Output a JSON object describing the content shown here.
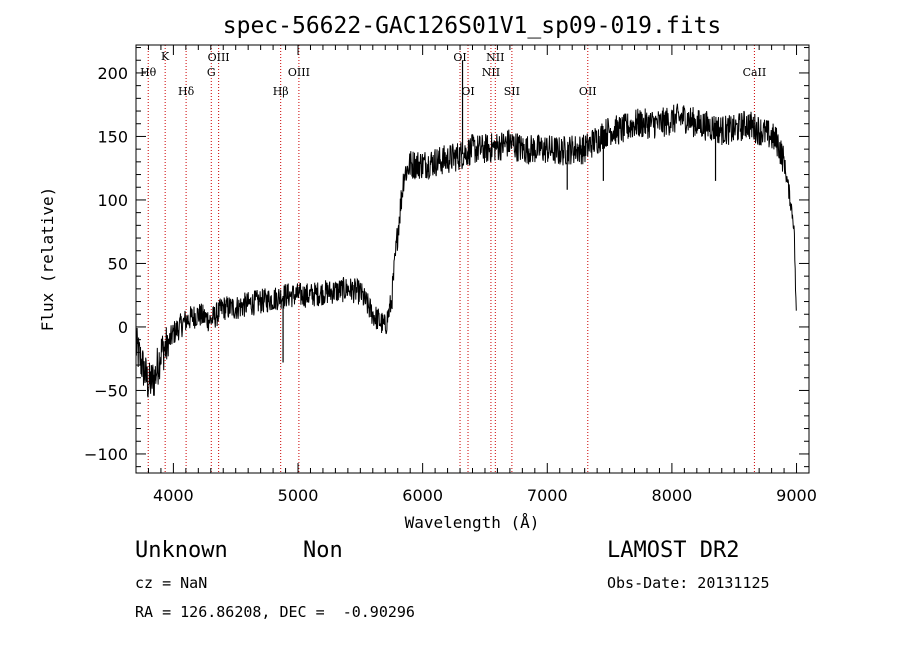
{
  "chart_data": {
    "type": "line",
    "title": "spec-56622-GAC126S01V1_sp09-019.fits",
    "xlabel": "Wavelength (Å)",
    "ylabel": "Flux (relative)",
    "xlim": [
      3700,
      9100
    ],
    "ylim": [
      -115,
      222
    ],
    "x_ticks": [
      4000,
      5000,
      6000,
      7000,
      8000,
      9000
    ],
    "x_tick_labels": [
      "4000",
      "5000",
      "6000",
      "7000",
      "8000",
      "9000"
    ],
    "y_ticks": [
      -100,
      -50,
      0,
      50,
      100,
      150,
      200
    ],
    "y_tick_labels": [
      "−100",
      "−50",
      "0",
      "50",
      "100",
      "150",
      "200"
    ],
    "grid": false,
    "line_color": "#000000",
    "marker_color": "#cc0000",
    "spectrum": {
      "x": [
        3700,
        3750,
        3800,
        3850,
        3900,
        3950,
        4000,
        4100,
        4200,
        4300,
        4400,
        4500,
        4600,
        4700,
        4800,
        4900,
        5000,
        5100,
        5200,
        5300,
        5400,
        5500,
        5600,
        5700,
        5750,
        5800,
        5850,
        5900,
        6000,
        6100,
        6200,
        6300,
        6400,
        6500,
        6600,
        6700,
        6800,
        6900,
        7000,
        7100,
        7200,
        7300,
        7400,
        7500,
        7600,
        7700,
        7800,
        7900,
        8000,
        8100,
        8200,
        8300,
        8400,
        8500,
        8600,
        8700,
        8800,
        8850,
        8900,
        8950,
        8980,
        9000
      ],
      "y": [
        -15,
        -30,
        -45,
        -40,
        -20,
        -15,
        -5,
        5,
        10,
        5,
        15,
        15,
        18,
        20,
        22,
        25,
        25,
        25,
        27,
        28,
        30,
        27,
        10,
        0,
        20,
        75,
        120,
        128,
        128,
        130,
        132,
        135,
        140,
        140,
        142,
        145,
        140,
        140,
        140,
        138,
        140,
        140,
        148,
        155,
        155,
        160,
        160,
        160,
        163,
        165,
        160,
        158,
        155,
        155,
        160,
        155,
        150,
        145,
        130,
        100,
        80,
        0
      ]
    },
    "spikes": [
      {
        "x": 4880,
        "y": -28
      },
      {
        "x": 6320,
        "y": 210
      },
      {
        "x": 7160,
        "y": 108
      },
      {
        "x": 7450,
        "y": 115
      },
      {
        "x": 8350,
        "y": 115
      }
    ],
    "line_markers": [
      {
        "x": 3798,
        "label": "Hθ",
        "row": 2
      },
      {
        "x": 3934,
        "label": "K",
        "row": 0
      },
      {
        "x": 4102,
        "label": "Hδ",
        "row": 3
      },
      {
        "x": 4304,
        "label": "G",
        "row": 2
      },
      {
        "x": 4363,
        "label": "OIII",
        "row": 1
      },
      {
        "x": 4861,
        "label": "Hβ",
        "row": 3
      },
      {
        "x": 5007,
        "label": "OIII",
        "row": 2
      },
      {
        "x": 6300,
        "label": "OI",
        "row": 1
      },
      {
        "x": 6364,
        "label": "OI",
        "row": 3
      },
      {
        "x": 6548,
        "label": "NII",
        "row": 2
      },
      {
        "x": 6583,
        "label": "NII",
        "row": 1
      },
      {
        "x": 6716,
        "label": "SII",
        "row": 3
      },
      {
        "x": 7325,
        "label": "OII",
        "row": 3
      },
      {
        "x": 8662,
        "label": "CaII",
        "row": 2
      }
    ]
  },
  "footer": {
    "class_label": "Unknown",
    "subclass_label": "Non",
    "cz": "cz = NaN",
    "coords": "RA = 126.86208, DEC =  -0.90296",
    "survey": "LAMOST DR2",
    "obs_date": "Obs-Date: 20131125"
  }
}
